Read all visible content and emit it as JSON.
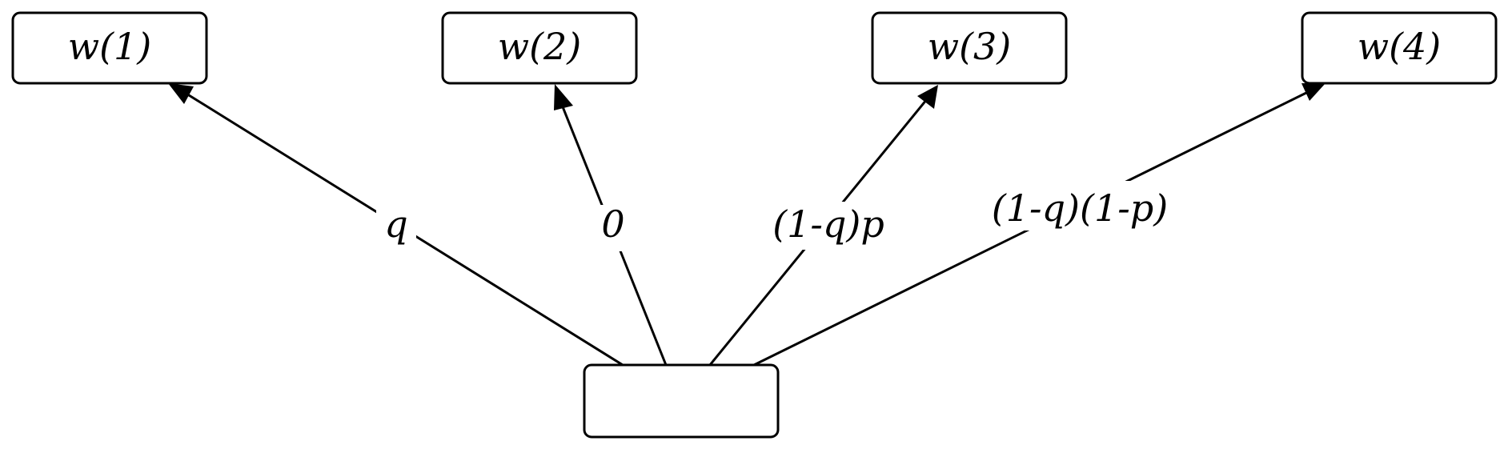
{
  "nodes": [
    {
      "id": "w1",
      "label": "w(1)"
    },
    {
      "id": "w2",
      "label": "w(2)"
    },
    {
      "id": "w3",
      "label": "w(3)"
    },
    {
      "id": "w4",
      "label": "w(4)"
    },
    {
      "id": "source",
      "label": ""
    }
  ],
  "edges": [
    {
      "from": "source",
      "to": "w1",
      "label": "q"
    },
    {
      "from": "source",
      "to": "w2",
      "label": "0"
    },
    {
      "from": "source",
      "to": "w3",
      "label": "(1-q)p"
    },
    {
      "from": "source",
      "to": "w4",
      "label": "(1-q)(1-p)"
    }
  ],
  "colors": {
    "stroke": "#000000",
    "background": "#ffffff"
  }
}
